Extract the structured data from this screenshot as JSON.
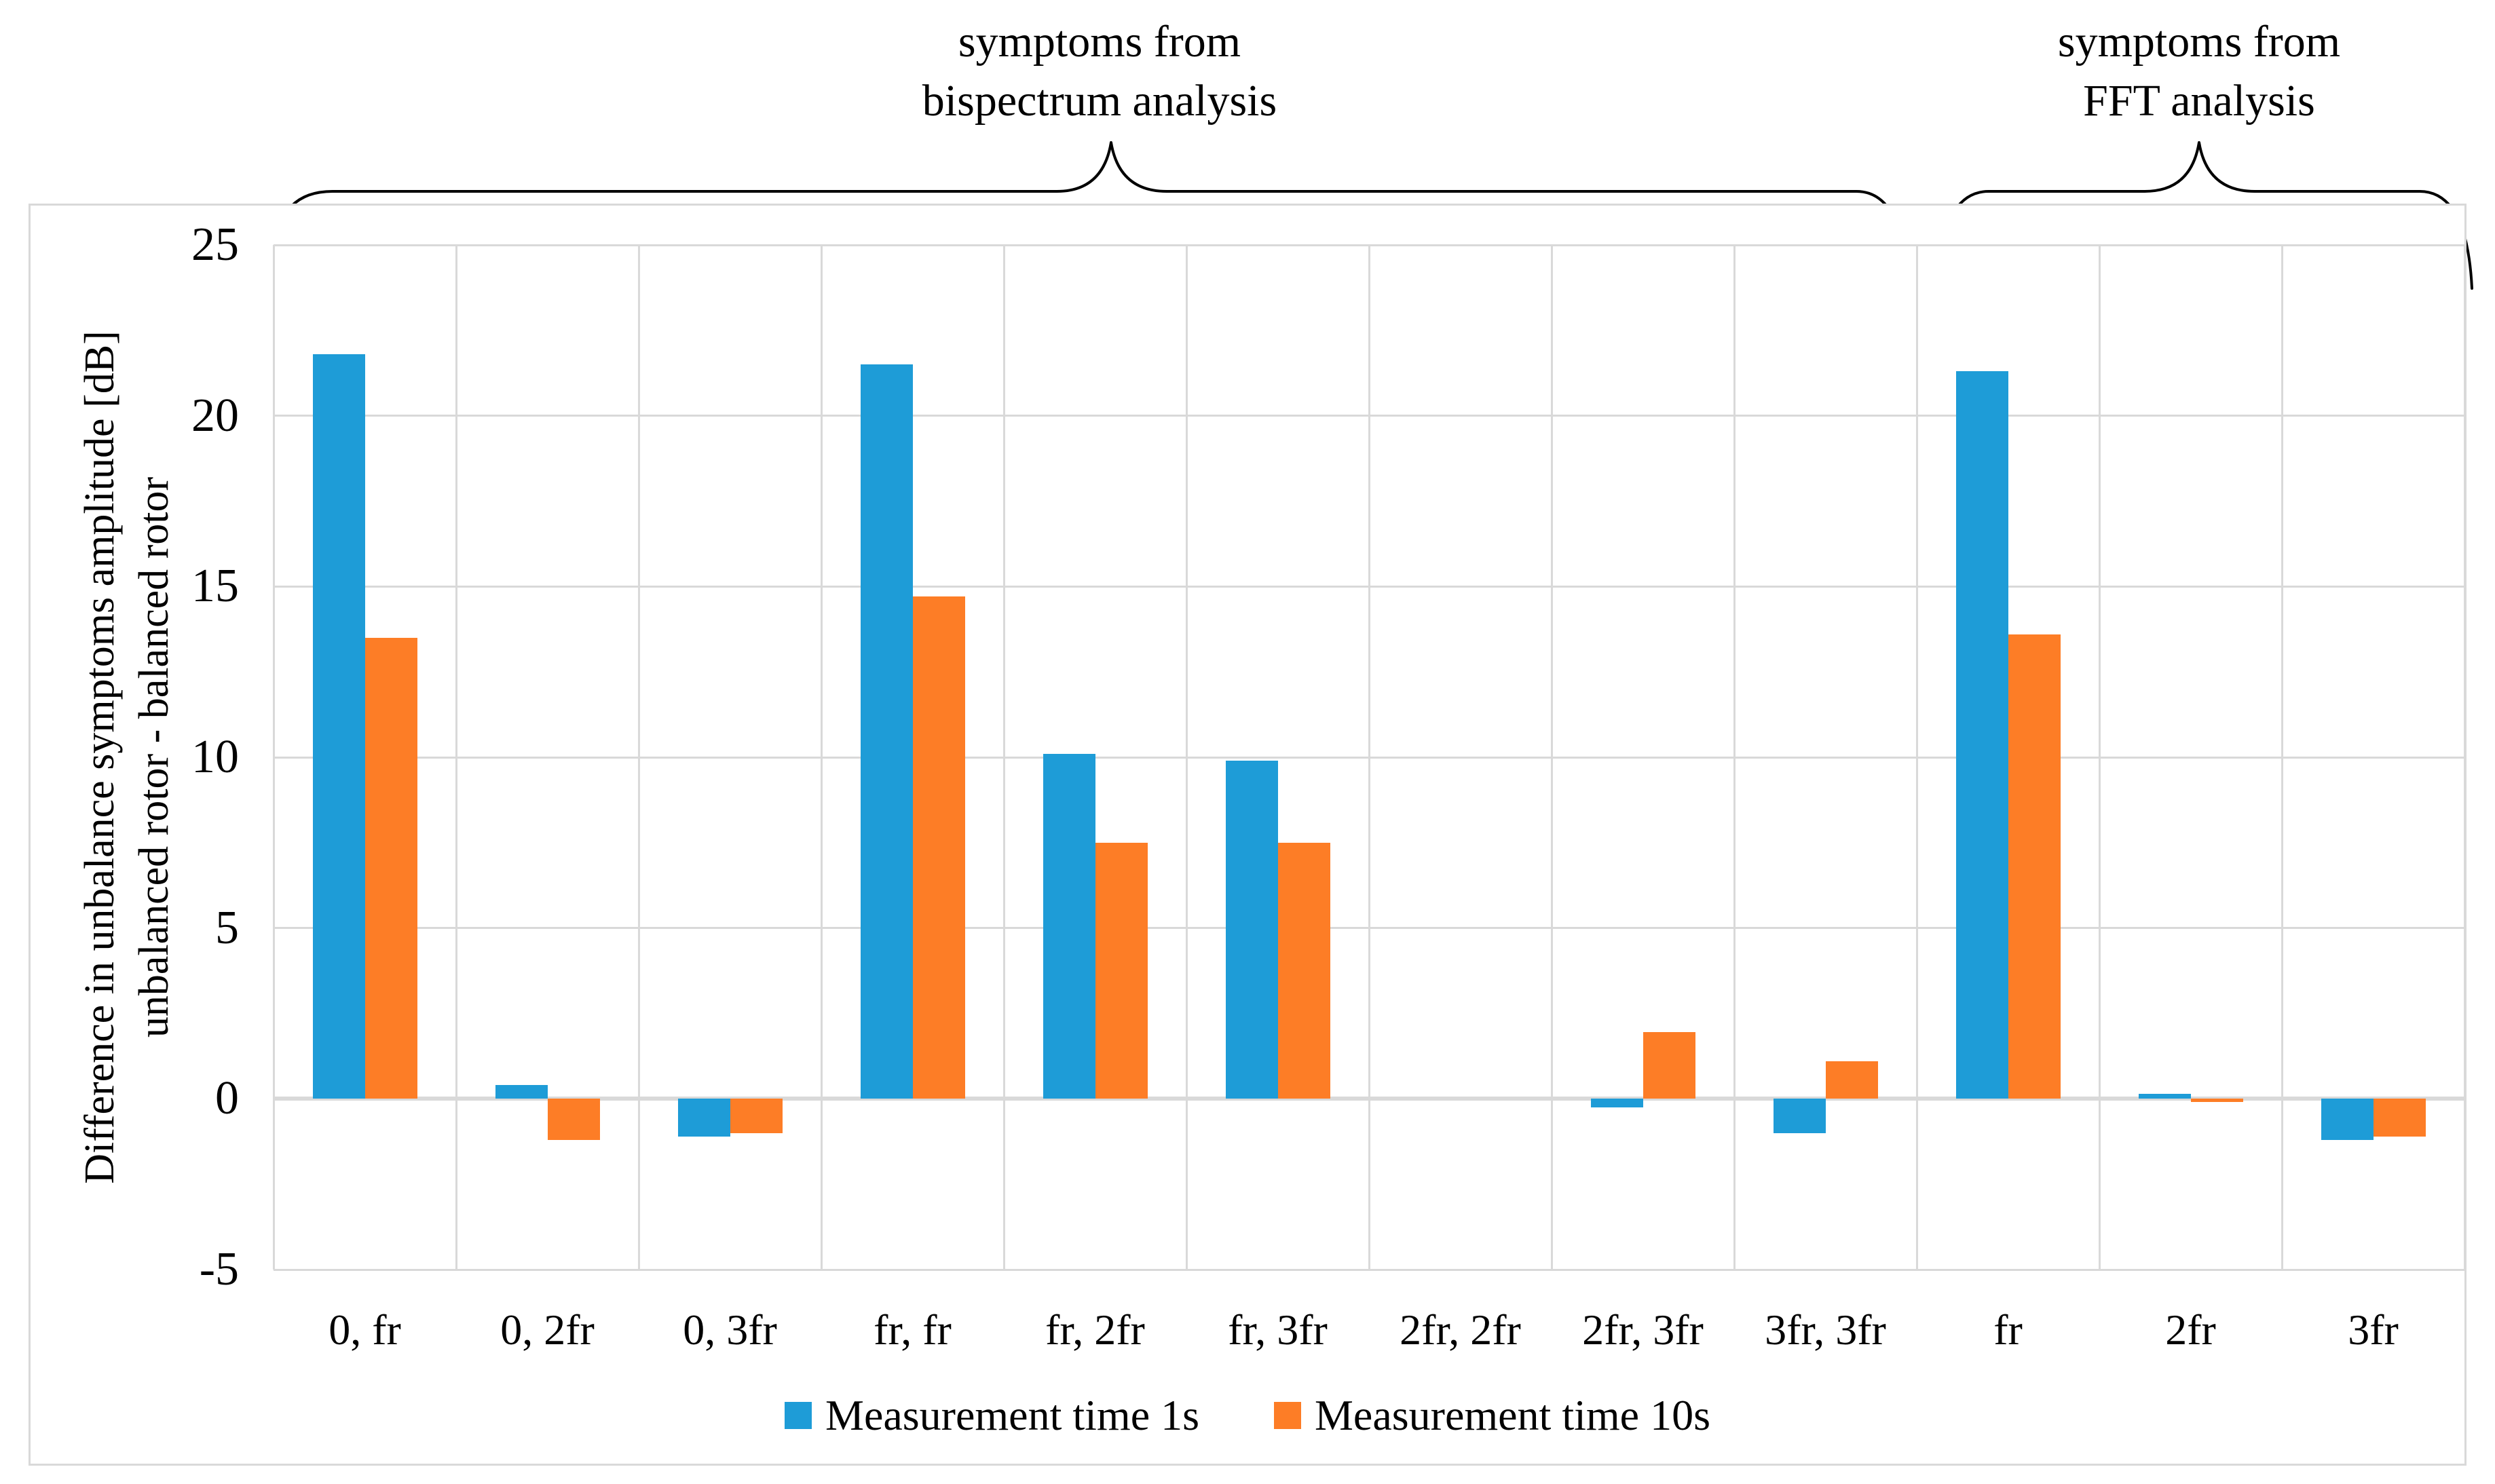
{
  "figure": {
    "annotations": [
      {
        "line1": "symptoms from",
        "line2": "bispectrum analysis"
      },
      {
        "line1": "symptoms from",
        "line2": "FFT analysis"
      }
    ],
    "y_axis_title_line1": "Difference in unbalance symptoms amplitude [dB]",
    "y_axis_title_line2": "unbalanced rotor - balanced rotor"
  },
  "legend": {
    "items": [
      {
        "label": "Measurement time 1s",
        "color": "#1e9cd7"
      },
      {
        "label": "Measurement time 10s",
        "color": "#fd7d26"
      }
    ]
  },
  "colors": {
    "series1": "#1e9cd7",
    "series2": "#fd7d26",
    "gridline": "#d9d9d9",
    "text": "#000000"
  },
  "chart_data": {
    "type": "bar",
    "title": "",
    "categories": [
      "0, fr",
      "0, 2fr",
      "0, 3fr",
      "fr, fr",
      "fr, 2fr",
      "fr, 3fr",
      "2fr, 2fr",
      "2fr, 3fr",
      "3fr, 3fr",
      "fr",
      "2fr",
      "3fr"
    ],
    "series": [
      {
        "name": "Measurement time 1s",
        "color": "#1e9cd7",
        "values": [
          21.8,
          0.4,
          -1.1,
          21.5,
          10.1,
          9.9,
          0,
          -0.25,
          -1.0,
          21.3,
          0.15,
          -1.2
        ]
      },
      {
        "name": "Measurement time 10s",
        "color": "#fd7d26",
        "values": [
          13.5,
          -1.2,
          -1.0,
          14.7,
          7.5,
          7.5,
          0,
          1.95,
          1.1,
          13.6,
          -0.1,
          -1.1
        ]
      }
    ],
    "xlabel": "",
    "ylabel": "Difference in unbalance symptoms amplitude [dB] unbalanced rotor - balanced rotor",
    "ylim": [
      -5,
      25
    ],
    "yticks": [
      25,
      20,
      15,
      10,
      5,
      0,
      -5
    ],
    "grid": true,
    "legend_position": "bottom",
    "group_annotations": [
      {
        "label": "symptoms from bispectrum analysis",
        "span_categories": [
          "0, fr",
          "3fr, 3fr"
        ]
      },
      {
        "label": "symptoms from FFT analysis",
        "span_categories": [
          "fr",
          "3fr"
        ]
      }
    ]
  }
}
